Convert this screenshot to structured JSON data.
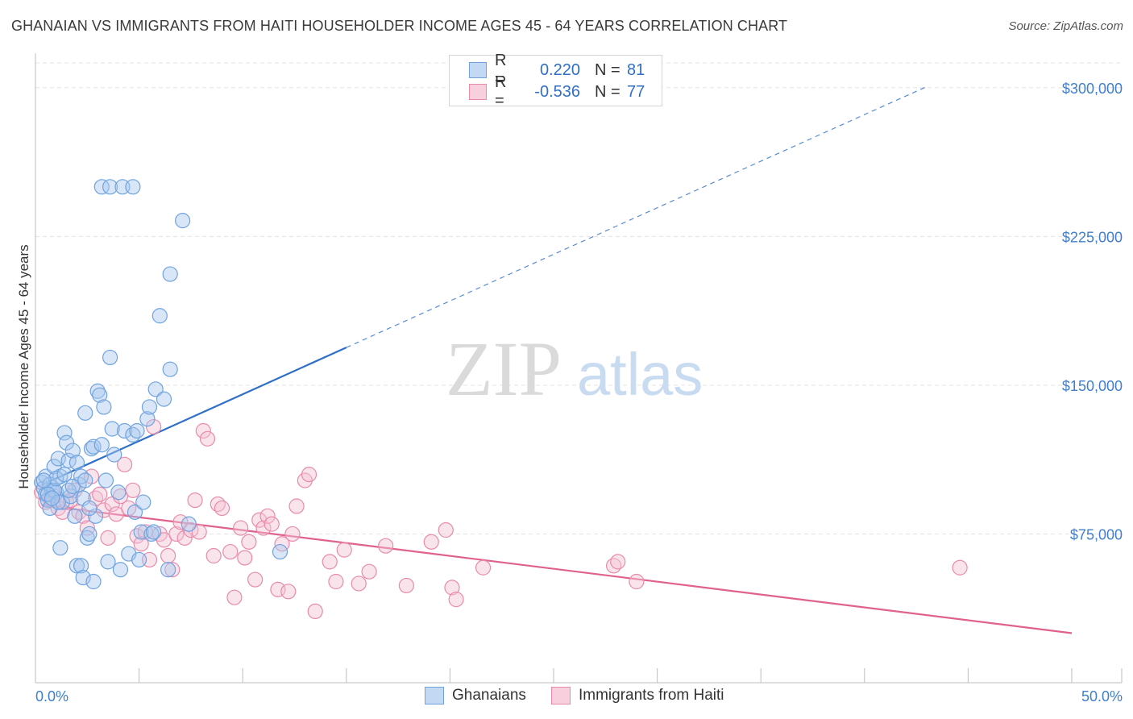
{
  "chart_data": {
    "type": "scatter",
    "title": "GHANAIAN VS IMMIGRANTS FROM HAITI HOUSEHOLDER INCOME AGES 45 - 64 YEARS CORRELATION CHART",
    "source": "Source: ZipAtlas.com",
    "ylabel": "Householder Income Ages 45 - 64 years",
    "xlabel": "",
    "xlim": [
      0,
      50
    ],
    "ylim": [
      0,
      312500
    ],
    "x_tick_labels": [
      "0.0%",
      "50.0%"
    ],
    "y_ticks": [
      {
        "value": 75000,
        "label": "$75,000"
      },
      {
        "value": 150000,
        "label": "$150,000"
      },
      {
        "value": 225000,
        "label": "$225,000"
      },
      {
        "value": 300000,
        "label": "$300,000"
      }
    ],
    "watermark": {
      "zip": "ZIP",
      "atlas": "atlas"
    },
    "legend": {
      "rows": [
        {
          "r_label": "R =",
          "r_value": "0.220",
          "n_label": "N =",
          "n_value": "81"
        },
        {
          "r_label": "R =",
          "r_value": "-0.536",
          "n_label": "N =",
          "n_value": "77"
        }
      ]
    },
    "series": [
      {
        "name": "Ghanaians",
        "color": "#6fa3e0",
        "fill": "#a9c8ee",
        "line_color": "#2f6fc7",
        "trend": {
          "x0": 0.3,
          "y0": 99700,
          "x1": 15,
          "y1": 169000,
          "x_dash_end": 43,
          "y_dash_end": 300500
        },
        "points": [
          [
            0.3,
            101000
          ],
          [
            0.4,
            98000
          ],
          [
            0.5,
            104000
          ],
          [
            0.5,
            95000
          ],
          [
            0.6,
            92000
          ],
          [
            0.7,
            100000
          ],
          [
            0.8,
            97000
          ],
          [
            0.9,
            109000
          ],
          [
            1.0,
            96000
          ],
          [
            1.1,
            113000
          ],
          [
            1.2,
            104000
          ],
          [
            1.3,
            91000
          ],
          [
            1.4,
            126000
          ],
          [
            1.5,
            121000
          ],
          [
            1.6,
            112000
          ],
          [
            1.7,
            94000
          ],
          [
            1.8,
            117000
          ],
          [
            1.9,
            84000
          ],
          [
            2.0,
            111000
          ],
          [
            2.1,
            100000
          ],
          [
            2.2,
            104000
          ],
          [
            2.3,
            93000
          ],
          [
            2.4,
            136000
          ],
          [
            2.5,
            73000
          ],
          [
            2.6,
            75000
          ],
          [
            2.7,
            118000
          ],
          [
            2.8,
            119000
          ],
          [
            2.9,
            84000
          ],
          [
            3.0,
            147000
          ],
          [
            3.1,
            145000
          ],
          [
            3.2,
            120000
          ],
          [
            3.3,
            139000
          ],
          [
            3.4,
            102000
          ],
          [
            3.6,
            164000
          ],
          [
            3.7,
            128000
          ],
          [
            3.8,
            115000
          ],
          [
            4.0,
            96000
          ],
          [
            4.1,
            57000
          ],
          [
            4.3,
            127000
          ],
          [
            4.5,
            65000
          ],
          [
            4.7,
            125000
          ],
          [
            4.8,
            86000
          ],
          [
            4.9,
            127000
          ],
          [
            5.0,
            62000
          ],
          [
            5.1,
            76000
          ],
          [
            5.2,
            91000
          ],
          [
            5.4,
            133000
          ],
          [
            5.5,
            139000
          ],
          [
            5.6,
            75000
          ],
          [
            5.7,
            76000
          ],
          [
            5.8,
            148000
          ],
          [
            6.0,
            185000
          ],
          [
            6.2,
            143000
          ],
          [
            6.4,
            57000
          ],
          [
            6.5,
            158000
          ],
          [
            6.5,
            206000
          ],
          [
            7.1,
            233000
          ],
          [
            7.4,
            80000
          ],
          [
            3.2,
            250000
          ],
          [
            3.6,
            250000
          ],
          [
            4.2,
            250000
          ],
          [
            4.7,
            250000
          ],
          [
            11.8,
            66000
          ],
          [
            1.2,
            68000
          ],
          [
            2.0,
            59000
          ],
          [
            2.2,
            59000
          ],
          [
            2.3,
            53000
          ],
          [
            2.8,
            51000
          ],
          [
            3.5,
            61000
          ],
          [
            1.6,
            97000
          ],
          [
            0.9,
            97000
          ],
          [
            0.6,
            95000
          ],
          [
            1.0,
            103000
          ],
          [
            1.4,
            105000
          ],
          [
            2.6,
            88000
          ],
          [
            1.8,
            99000
          ],
          [
            0.7,
            88000
          ],
          [
            0.4,
            102000
          ],
          [
            1.1,
            91000
          ],
          [
            2.4,
            102000
          ],
          [
            0.8,
            93000
          ]
        ]
      },
      {
        "name": "Immigrants from Haiti",
        "color": "#e98aab",
        "fill": "#f5c4d4",
        "line_color": "#e0608e",
        "trend": {
          "x0": 0.3,
          "y0": 89500,
          "x1": 50,
          "y1": 25000
        },
        "points": [
          [
            0.3,
            96000
          ],
          [
            0.5,
            91000
          ],
          [
            0.7,
            93000
          ],
          [
            0.9,
            94000
          ],
          [
            1.1,
            88000
          ],
          [
            1.3,
            86000
          ],
          [
            1.5,
            91000
          ],
          [
            1.7,
            92000
          ],
          [
            1.9,
            97000
          ],
          [
            2.1,
            86000
          ],
          [
            2.3,
            84000
          ],
          [
            2.5,
            78000
          ],
          [
            2.7,
            104000
          ],
          [
            2.9,
            93000
          ],
          [
            3.1,
            95000
          ],
          [
            3.3,
            87000
          ],
          [
            3.5,
            73000
          ],
          [
            3.7,
            90000
          ],
          [
            3.9,
            85000
          ],
          [
            4.1,
            94000
          ],
          [
            4.3,
            110000
          ],
          [
            4.5,
            88000
          ],
          [
            4.7,
            97000
          ],
          [
            4.9,
            74000
          ],
          [
            5.1,
            70000
          ],
          [
            5.3,
            76000
          ],
          [
            5.5,
            62000
          ],
          [
            5.7,
            129000
          ],
          [
            6.0,
            75000
          ],
          [
            6.2,
            72000
          ],
          [
            6.4,
            64000
          ],
          [
            6.6,
            57000
          ],
          [
            6.8,
            75000
          ],
          [
            7.0,
            81000
          ],
          [
            7.2,
            73000
          ],
          [
            7.5,
            77000
          ],
          [
            7.7,
            92000
          ],
          [
            7.9,
            76000
          ],
          [
            8.1,
            127000
          ],
          [
            8.3,
            123000
          ],
          [
            8.6,
            64000
          ],
          [
            8.8,
            90000
          ],
          [
            9.0,
            88000
          ],
          [
            9.4,
            66000
          ],
          [
            9.6,
            43000
          ],
          [
            9.9,
            78000
          ],
          [
            10.1,
            63000
          ],
          [
            10.3,
            71000
          ],
          [
            10.6,
            52000
          ],
          [
            10.8,
            82000
          ],
          [
            11.0,
            78000
          ],
          [
            11.2,
            84000
          ],
          [
            11.4,
            80000
          ],
          [
            11.7,
            47000
          ],
          [
            11.9,
            70000
          ],
          [
            12.2,
            46000
          ],
          [
            12.4,
            75000
          ],
          [
            12.6,
            89000
          ],
          [
            13.0,
            102000
          ],
          [
            13.2,
            105000
          ],
          [
            13.5,
            36000
          ],
          [
            14.2,
            61000
          ],
          [
            14.5,
            51000
          ],
          [
            14.9,
            67000
          ],
          [
            15.6,
            50000
          ],
          [
            16.1,
            56000
          ],
          [
            16.9,
            69000
          ],
          [
            17.9,
            49000
          ],
          [
            19.1,
            71000
          ],
          [
            19.8,
            77000
          ],
          [
            20.1,
            48000
          ],
          [
            20.3,
            42000
          ],
          [
            21.6,
            58000
          ],
          [
            27.9,
            59000
          ],
          [
            28.1,
            61000
          ],
          [
            29.0,
            51000
          ],
          [
            44.6,
            58000
          ]
        ]
      }
    ]
  }
}
